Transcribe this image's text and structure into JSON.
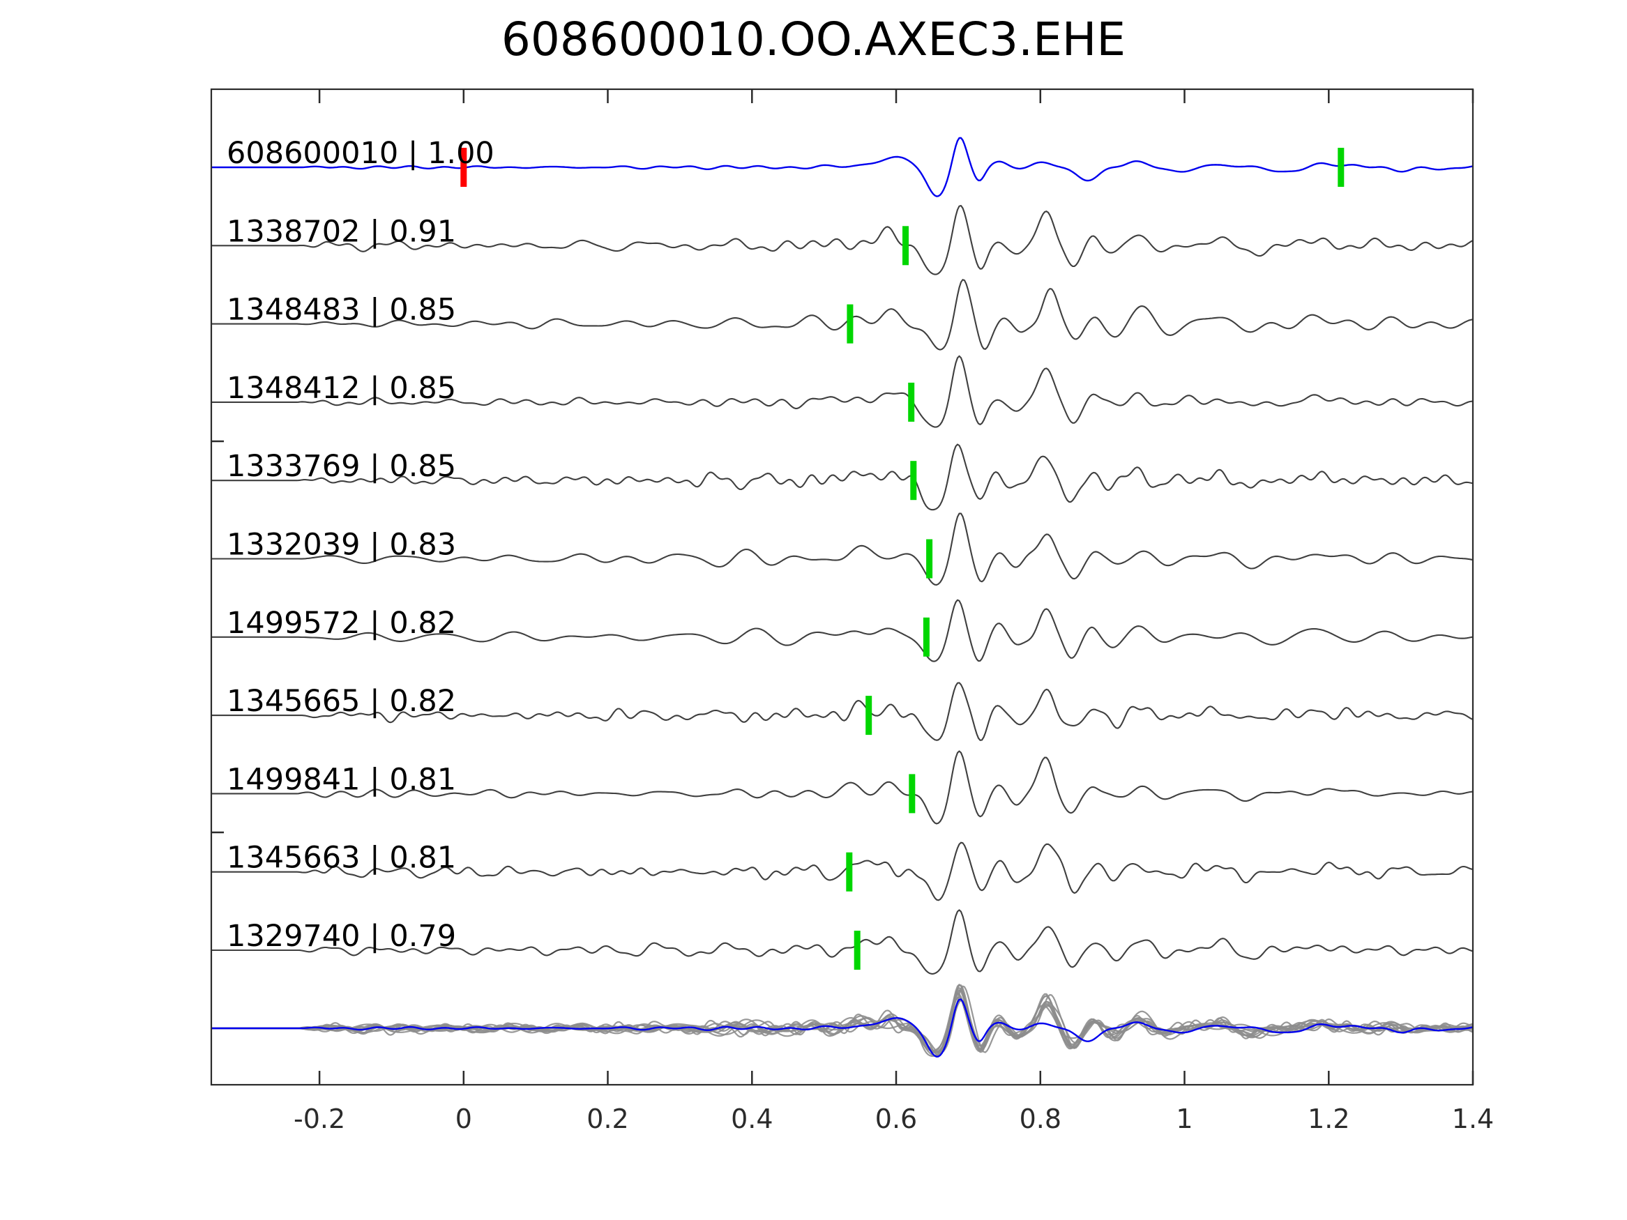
{
  "page": {
    "title": "608600010.OO.AXEC3.EHE"
  },
  "chart_data": {
    "type": "line",
    "title": "608600010.OO.AXEC3.EHE",
    "x_axis": {
      "lim": [
        -0.35,
        1.4
      ],
      "ticks": [
        -0.2,
        0,
        0.2,
        0.4,
        0.6,
        0.8,
        1,
        1.2,
        1.4
      ],
      "tick_labels": [
        "-0.2",
        "0",
        "0.2",
        "0.4",
        "0.6",
        "0.8",
        "1",
        "1.2",
        "1.4"
      ]
    },
    "grid": false,
    "legend": "none",
    "colors": {
      "template": "#0000ee",
      "detection": "#3f3f3f",
      "overlay_gray": "#8d8d8d",
      "pick_green": "#00d600",
      "pick_red": "#ff0000",
      "axis": "#2b2b2b",
      "label_text": "#000000"
    },
    "rows": [
      {
        "kind": "template",
        "id": "608600010",
        "cc": "1.00",
        "label": "608600010 | 1.00",
        "picks": [
          {
            "time": 0.0,
            "color": "red"
          },
          {
            "time": 1.217,
            "color": "green"
          }
        ]
      },
      {
        "kind": "detection",
        "id": "1338702",
        "cc": "0.91",
        "label": "1338702 | 0.91",
        "picks": [
          {
            "time": 0.613,
            "color": "green"
          }
        ]
      },
      {
        "kind": "detection",
        "id": "1348483",
        "cc": "0.85",
        "label": "1348483 | 0.85",
        "picks": [
          {
            "time": 0.536,
            "color": "green"
          }
        ]
      },
      {
        "kind": "detection",
        "id": "1348412",
        "cc": "0.85",
        "label": "1348412 | 0.85",
        "picks": [
          {
            "time": 0.621,
            "color": "green"
          }
        ]
      },
      {
        "kind": "detection",
        "id": "1333769",
        "cc": "0.85",
        "label": "1333769 | 0.85",
        "picks": [
          {
            "time": 0.624,
            "color": "green"
          }
        ]
      },
      {
        "kind": "detection",
        "id": "1332039",
        "cc": "0.83",
        "label": "1332039 | 0.83",
        "picks": [
          {
            "time": 0.646,
            "color": "green"
          }
        ]
      },
      {
        "kind": "detection",
        "id": "1499572",
        "cc": "0.82",
        "label": "1499572 | 0.82",
        "picks": [
          {
            "time": 0.642,
            "color": "green"
          }
        ]
      },
      {
        "kind": "detection",
        "id": "1345665",
        "cc": "0.82",
        "label": "1345665 | 0.82",
        "picks": [
          {
            "time": 0.562,
            "color": "green"
          }
        ]
      },
      {
        "kind": "detection",
        "id": "1499841",
        "cc": "0.81",
        "label": "1499841 | 0.81",
        "picks": [
          {
            "time": 0.622,
            "color": "green"
          }
        ]
      },
      {
        "kind": "detection",
        "id": "1345663",
        "cc": "0.81",
        "label": "1345663 | 0.81",
        "picks": [
          {
            "time": 0.535,
            "color": "green"
          }
        ]
      },
      {
        "kind": "detection",
        "id": "1329740",
        "cc": "0.79",
        "label": "1329740 | 0.79",
        "picks": [
          {
            "time": 0.546,
            "color": "green"
          }
        ]
      }
    ],
    "overlay_row": {
      "content": "all detection traces overlaid in gray with blue template on top"
    },
    "signal_model": {
      "detection_components": [
        [
          0.545,
          0.02,
          9
        ],
        [
          0.588,
          0.02,
          13
        ],
        [
          0.656,
          0.02,
          -40
        ],
        [
          0.688,
          0.0135,
          62
        ],
        [
          0.718,
          0.012,
          -34
        ],
        [
          0.744,
          0.011,
          11
        ],
        [
          0.768,
          0.012,
          -13
        ],
        [
          0.81,
          0.0145,
          46
        ],
        [
          0.846,
          0.014,
          -29
        ],
        [
          0.874,
          0.011,
          11
        ],
        [
          0.902,
          0.014,
          -9
        ],
        [
          0.936,
          0.018,
          14
        ],
        [
          0.972,
          0.018,
          -8
        ],
        [
          1.035,
          0.025,
          8
        ],
        [
          1.09,
          0.028,
          -6
        ],
        [
          1.19,
          0.03,
          6
        ]
      ],
      "template_components": [
        [
          0.555,
          0.025,
          5
        ],
        [
          0.603,
          0.026,
          14
        ],
        [
          0.657,
          0.019,
          -43
        ],
        [
          0.688,
          0.0125,
          47
        ],
        [
          0.715,
          0.011,
          -21
        ],
        [
          0.742,
          0.015,
          7
        ],
        [
          0.8,
          0.03,
          4
        ],
        [
          0.868,
          0.024,
          -17
        ],
        [
          0.93,
          0.022,
          9
        ],
        [
          0.99,
          0.03,
          -5
        ],
        [
          1.06,
          0.03,
          4
        ],
        [
          1.13,
          0.035,
          -5
        ],
        [
          1.215,
          0.03,
          5
        ],
        [
          1.31,
          0.035,
          -4
        ]
      ],
      "detection_noise_env": [
        [
          -0.35,
          0
        ],
        [
          -0.23,
          0
        ],
        [
          -0.19,
          6
        ],
        [
          0.05,
          6
        ],
        [
          0.2,
          7
        ],
        [
          0.4,
          9
        ],
        [
          0.5,
          12
        ],
        [
          0.6,
          11
        ],
        [
          0.66,
          5
        ],
        [
          0.72,
          6
        ],
        [
          0.8,
          8
        ],
        [
          0.95,
          9
        ],
        [
          1.1,
          8
        ],
        [
          1.25,
          8
        ],
        [
          1.4,
          7
        ]
      ],
      "template_noise_env": [
        [
          -0.35,
          0
        ],
        [
          -0.23,
          0
        ],
        [
          -0.19,
          2.2
        ],
        [
          0.3,
          2.6
        ],
        [
          0.5,
          3
        ],
        [
          0.7,
          2
        ],
        [
          1.0,
          3
        ],
        [
          1.4,
          2.5
        ]
      ]
    }
  }
}
